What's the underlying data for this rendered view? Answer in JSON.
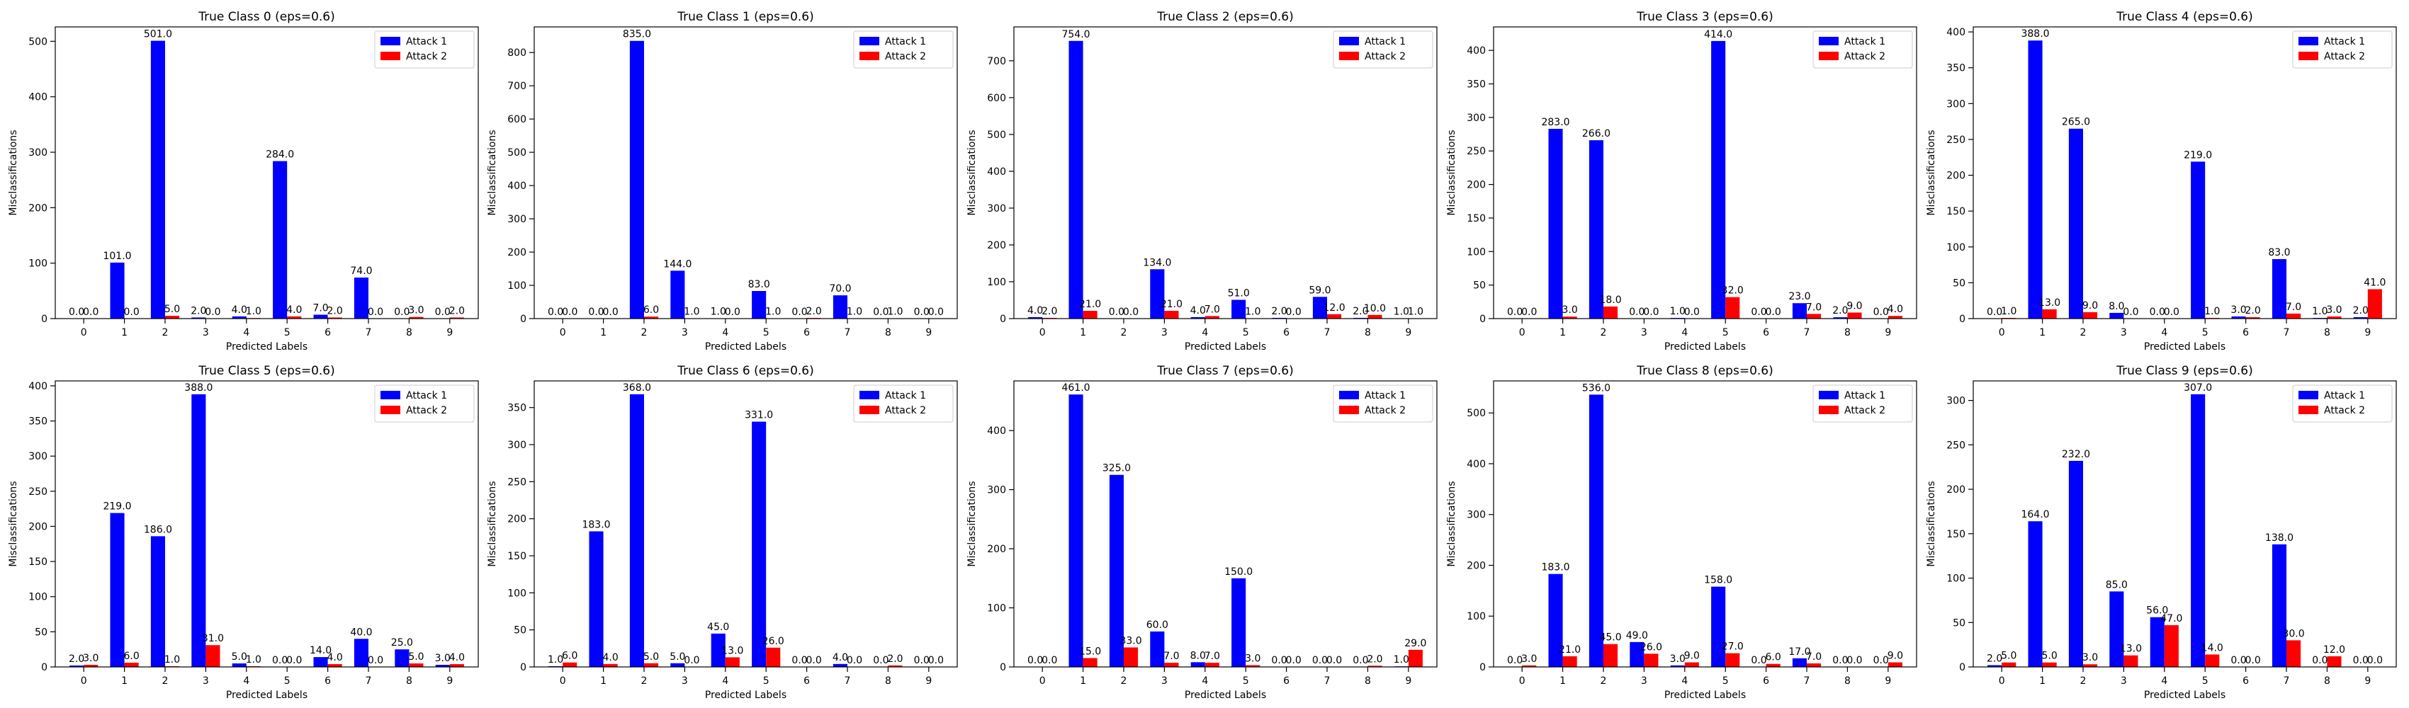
{
  "colors": {
    "attack1": "#0000ff",
    "attack2": "#ff0000"
  },
  "chart_data": [
    {
      "type": "bar",
      "title": "True Class 0 (eps=0.6)",
      "xlabel": "Predicted Labels",
      "ylabel": "Misclassifications",
      "categories": [
        "0",
        "1",
        "2",
        "3",
        "4",
        "5",
        "6",
        "7",
        "8",
        "9"
      ],
      "yticks": [
        0,
        100,
        200,
        300,
        400,
        500
      ],
      "ylim": [
        0,
        526
      ],
      "legend": "top-right",
      "series": [
        {
          "name": "Attack 1",
          "values": [
            0,
            101,
            501,
            2,
            4,
            284,
            7,
            74,
            0,
            0
          ]
        },
        {
          "name": "Attack 2",
          "values": [
            0,
            0,
            5,
            0,
            1,
            4,
            2,
            0,
            3,
            2
          ]
        }
      ]
    },
    {
      "type": "bar",
      "title": "True Class 1 (eps=0.6)",
      "xlabel": "Predicted Labels",
      "ylabel": "Misclassifications",
      "categories": [
        "0",
        "1",
        "2",
        "3",
        "4",
        "5",
        "6",
        "7",
        "8",
        "9"
      ],
      "yticks": [
        0,
        100,
        200,
        300,
        400,
        500,
        600,
        700,
        800
      ],
      "ylim": [
        0,
        877
      ],
      "legend": "top-right",
      "series": [
        {
          "name": "Attack 1",
          "values": [
            0,
            0,
            835,
            144,
            1,
            83,
            0,
            70,
            0,
            0
          ]
        },
        {
          "name": "Attack 2",
          "values": [
            0,
            0,
            6,
            1,
            0,
            1,
            2,
            1,
            1,
            0
          ]
        }
      ]
    },
    {
      "type": "bar",
      "title": "True Class 2 (eps=0.6)",
      "xlabel": "Predicted Labels",
      "ylabel": "Misclassifications",
      "categories": [
        "0",
        "1",
        "2",
        "3",
        "4",
        "5",
        "6",
        "7",
        "8",
        "9"
      ],
      "yticks": [
        0,
        100,
        200,
        300,
        400,
        500,
        600,
        700
      ],
      "ylim": [
        0,
        792
      ],
      "legend": "top-right",
      "series": [
        {
          "name": "Attack 1",
          "values": [
            4,
            754,
            0,
            134,
            4,
            51,
            2,
            59,
            2,
            1
          ]
        },
        {
          "name": "Attack 2",
          "values": [
            2,
            21,
            0,
            21,
            7,
            1,
            0,
            12,
            10,
            1
          ]
        }
      ]
    },
    {
      "type": "bar",
      "title": "True Class 3 (eps=0.6)",
      "xlabel": "Predicted Labels",
      "ylabel": "Misclassifications",
      "categories": [
        "0",
        "1",
        "2",
        "3",
        "4",
        "5",
        "6",
        "7",
        "8",
        "9"
      ],
      "yticks": [
        0,
        50,
        100,
        150,
        200,
        250,
        300,
        350,
        400
      ],
      "ylim": [
        0,
        435
      ],
      "legend": "top-right",
      "series": [
        {
          "name": "Attack 1",
          "values": [
            0,
            283,
            266,
            0,
            1,
            414,
            0,
            23,
            2,
            0
          ]
        },
        {
          "name": "Attack 2",
          "values": [
            0,
            3,
            18,
            0,
            0,
            32,
            0,
            7,
            9,
            4
          ]
        }
      ]
    },
    {
      "type": "bar",
      "title": "True Class 4 (eps=0.6)",
      "xlabel": "Predicted Labels",
      "ylabel": "Misclassifications",
      "categories": [
        "0",
        "1",
        "2",
        "3",
        "4",
        "5",
        "6",
        "7",
        "8",
        "9"
      ],
      "yticks": [
        0,
        50,
        100,
        150,
        200,
        250,
        300,
        350,
        400
      ],
      "ylim": [
        0,
        407
      ],
      "legend": "top-right",
      "series": [
        {
          "name": "Attack 1",
          "values": [
            0,
            388,
            265,
            8,
            0,
            219,
            3,
            83,
            1,
            2
          ]
        },
        {
          "name": "Attack 2",
          "values": [
            1,
            13,
            9,
            0,
            0,
            1,
            2,
            7,
            3,
            41
          ]
        }
      ]
    },
    {
      "type": "bar",
      "title": "True Class 5 (eps=0.6)",
      "xlabel": "Predicted Labels",
      "ylabel": "Misclassifications",
      "categories": [
        "0",
        "1",
        "2",
        "3",
        "4",
        "5",
        "6",
        "7",
        "8",
        "9"
      ],
      "yticks": [
        0,
        50,
        100,
        150,
        200,
        250,
        300,
        350,
        400
      ],
      "ylim": [
        0,
        407
      ],
      "legend": "top-right",
      "series": [
        {
          "name": "Attack 1",
          "values": [
            2,
            219,
            186,
            388,
            5,
            0,
            14,
            40,
            25,
            3
          ]
        },
        {
          "name": "Attack 2",
          "values": [
            3,
            6,
            1,
            31,
            1,
            0,
            4,
            0,
            5,
            4
          ]
        }
      ]
    },
    {
      "type": "bar",
      "title": "True Class 6 (eps=0.6)",
      "xlabel": "Predicted Labels",
      "ylabel": "Misclassifications",
      "categories": [
        "0",
        "1",
        "2",
        "3",
        "4",
        "5",
        "6",
        "7",
        "8",
        "9"
      ],
      "yticks": [
        0,
        50,
        100,
        150,
        200,
        250,
        300,
        350
      ],
      "ylim": [
        0,
        386
      ],
      "legend": "top-right",
      "series": [
        {
          "name": "Attack 1",
          "values": [
            1,
            183,
            368,
            5,
            45,
            331,
            0,
            4,
            0,
            0
          ]
        },
        {
          "name": "Attack 2",
          "values": [
            6,
            4,
            5,
            0,
            13,
            26,
            0,
            0,
            2,
            0
          ]
        }
      ]
    },
    {
      "type": "bar",
      "title": "True Class 7 (eps=0.6)",
      "xlabel": "Predicted Labels",
      "ylabel": "Misclassifications",
      "categories": [
        "0",
        "1",
        "2",
        "3",
        "4",
        "5",
        "6",
        "7",
        "8",
        "9"
      ],
      "yticks": [
        0,
        100,
        200,
        300,
        400
      ],
      "ylim": [
        0,
        484
      ],
      "legend": "top-right",
      "series": [
        {
          "name": "Attack 1",
          "values": [
            0,
            461,
            325,
            60,
            8,
            150,
            0,
            0,
            0,
            1
          ]
        },
        {
          "name": "Attack 2",
          "values": [
            0,
            15,
            33,
            7,
            7,
            3,
            0,
            0,
            2,
            29
          ]
        }
      ]
    },
    {
      "type": "bar",
      "title": "True Class 8 (eps=0.6)",
      "xlabel": "Predicted Labels",
      "ylabel": "Misclassifications",
      "categories": [
        "0",
        "1",
        "2",
        "3",
        "4",
        "5",
        "6",
        "7",
        "8",
        "9"
      ],
      "yticks": [
        0,
        100,
        200,
        300,
        400,
        500
      ],
      "ylim": [
        0,
        563
      ],
      "legend": "top-right",
      "series": [
        {
          "name": "Attack 1",
          "values": [
            0,
            183,
            536,
            49,
            3,
            158,
            0,
            17,
            0,
            0
          ]
        },
        {
          "name": "Attack 2",
          "values": [
            3,
            21,
            45,
            26,
            9,
            27,
            6,
            7,
            0,
            9
          ]
        }
      ]
    },
    {
      "type": "bar",
      "title": "True Class 9 (eps=0.6)",
      "xlabel": "Predicted Labels",
      "ylabel": "Misclassifications",
      "categories": [
        "0",
        "1",
        "2",
        "3",
        "4",
        "5",
        "6",
        "7",
        "8",
        "9"
      ],
      "yticks": [
        0,
        50,
        100,
        150,
        200,
        250,
        300
      ],
      "ylim": [
        0,
        322
      ],
      "legend": "top-right",
      "series": [
        {
          "name": "Attack 1",
          "values": [
            2,
            164,
            232,
            85,
            56,
            307,
            0,
            138,
            0,
            0
          ]
        },
        {
          "name": "Attack 2",
          "values": [
            5,
            5,
            3,
            13,
            47,
            14,
            0,
            30,
            12,
            0
          ]
        }
      ]
    }
  ]
}
